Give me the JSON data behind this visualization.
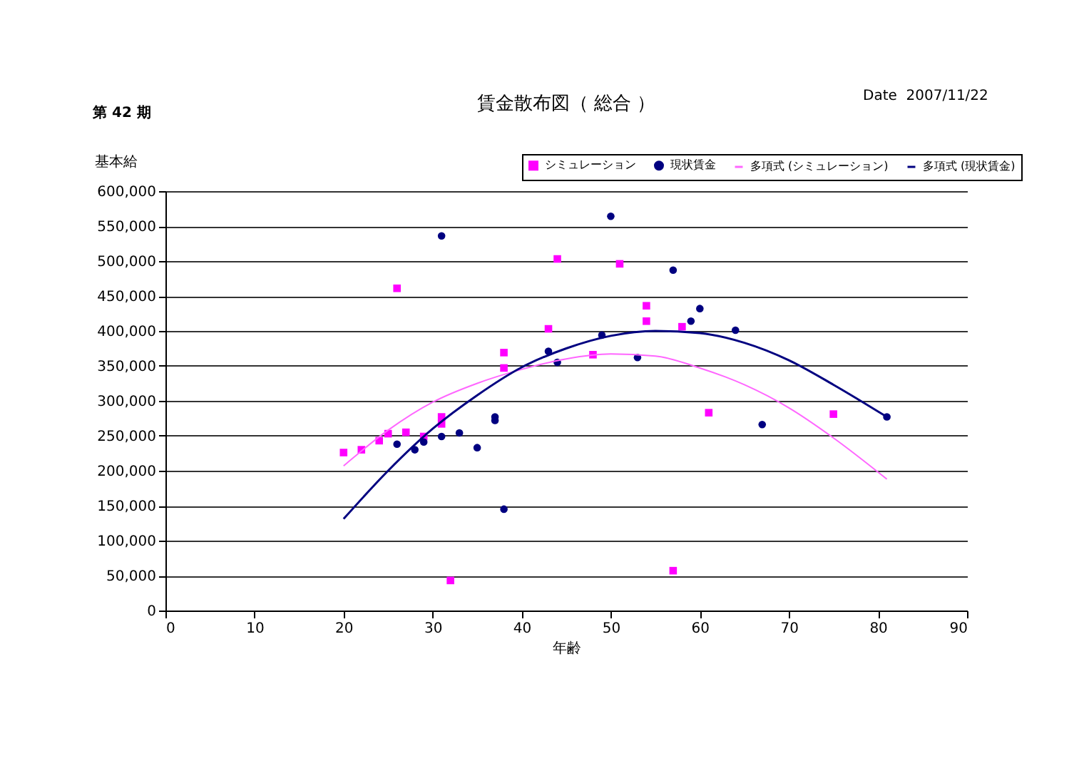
{
  "chart_data": {
    "type": "scatter",
    "title": "賃金散布図（ 総合 ）",
    "xlabel": "年齢",
    "ylabel": "基本給",
    "annotations": [
      "第 42 期",
      "Date  2007/11/22"
    ],
    "xlim": [
      0,
      90
    ],
    "xticks": [
      0,
      10,
      20,
      30,
      40,
      50,
      60,
      70,
      80,
      90
    ],
    "ylim": [
      0,
      600000
    ],
    "yticks": [
      0,
      {
        "value": 50000,
        "label": "50,000"
      },
      {
        "value": 100000,
        "label": "100,000"
      },
      {
        "value": 150000,
        "label": "150,000"
      },
      {
        "value": 200000,
        "label": "200,000"
      },
      {
        "value": 250000,
        "label": "250,000"
      },
      {
        "value": 300000,
        "label": "300,000"
      },
      {
        "value": 350000,
        "label": "350,000"
      },
      {
        "value": 400000,
        "label": "400,000"
      },
      {
        "value": 450000,
        "label": "450,000"
      },
      {
        "value": 500000,
        "label": "500,000"
      },
      {
        "value": 550000,
        "label": "550,000"
      },
      {
        "value": 600000,
        "label": "600,000"
      }
    ],
    "grid": "y",
    "legend": "top right",
    "series": [
      {
        "name": "シミュレーション",
        "type": "scatter",
        "marker": "square",
        "color": "#ff00ff",
        "x": [
          20,
          22,
          24,
          25,
          27,
          29,
          31,
          31,
          32,
          26,
          38,
          38,
          43,
          44,
          48,
          51,
          54,
          54,
          58,
          61,
          57,
          75
        ],
        "values": [
          226000,
          230000,
          243000,
          253000,
          255000,
          249000,
          277000,
          267000,
          43000,
          461000,
          369000,
          347000,
          403000,
          503000,
          366000,
          496000,
          436000,
          414000,
          406000,
          283000,
          57000,
          281000
        ]
      },
      {
        "name": "現状賃金",
        "type": "scatter",
        "marker": "circle",
        "color": "#000080",
        "x": [
          31,
          26,
          28,
          29,
          31,
          33,
          35,
          37,
          37,
          38,
          43,
          44,
          49,
          50,
          53,
          57,
          59,
          60,
          64,
          67,
          81
        ],
        "values": [
          536000,
          238000,
          230000,
          241000,
          249000,
          254000,
          233000,
          277000,
          272000,
          145000,
          371000,
          355000,
          394000,
          564000,
          362000,
          487000,
          414000,
          432000,
          401000,
          266000,
          277000
        ]
      },
      {
        "name": "多項式 (シミュレーション)",
        "type": "line",
        "line_style": "solid",
        "color": "#ff66ff",
        "x": [
          20,
          25,
          30,
          35,
          40,
          45,
          50,
          55,
          60,
          65,
          70,
          75,
          81
        ],
        "values": [
          207000,
          258000,
          298000,
          325000,
          345000,
          360000,
          367000,
          364000,
          347000,
          323000,
          290000,
          247000,
          188000
        ]
      },
      {
        "name": "多項式 (現状賃金)",
        "type": "line",
        "line_style": "solid",
        "color": "#000080",
        "x": [
          20,
          25,
          30,
          35,
          40,
          45,
          50,
          55,
          60,
          65,
          70,
          75,
          81
        ],
        "values": [
          131000,
          200000,
          260000,
          308000,
          348000,
          375000,
          393000,
          400000,
          397000,
          383000,
          358000,
          323000,
          277000
        ]
      }
    ]
  }
}
